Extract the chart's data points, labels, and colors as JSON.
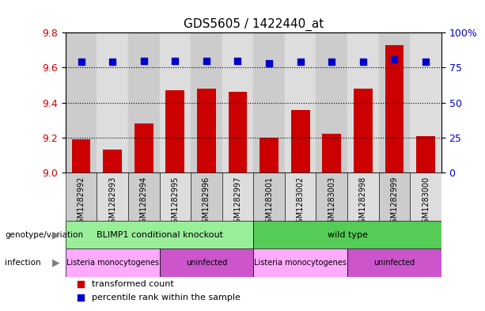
{
  "title": "GDS5605 / 1422440_at",
  "samples": [
    "GSM1282992",
    "GSM1282993",
    "GSM1282994",
    "GSM1282995",
    "GSM1282996",
    "GSM1282997",
    "GSM1283001",
    "GSM1283002",
    "GSM1283003",
    "GSM1282998",
    "GSM1282999",
    "GSM1283000"
  ],
  "transformed_count": [
    9.19,
    9.13,
    9.28,
    9.47,
    9.48,
    9.46,
    9.2,
    9.36,
    9.22,
    9.48,
    9.73,
    9.21
  ],
  "percentile_rank": [
    79,
    79,
    80,
    80,
    80,
    80,
    78,
    79,
    79,
    79,
    81,
    79
  ],
  "ylim_left": [
    9.0,
    9.8
  ],
  "ylim_right": [
    0,
    100
  ],
  "yticks_left": [
    9.0,
    9.2,
    9.4,
    9.6,
    9.8
  ],
  "yticks_right": [
    0,
    25,
    50,
    75,
    100
  ],
  "ytick_labels_right": [
    "0",
    "25",
    "50",
    "75",
    "100%"
  ],
  "bar_color": "#cc0000",
  "dot_color": "#0000cc",
  "genotype_groups": [
    {
      "label": "BLIMP1 conditional knockout",
      "start": 0,
      "end": 6,
      "color": "#99ee99"
    },
    {
      "label": "wild type",
      "start": 6,
      "end": 12,
      "color": "#55cc55"
    }
  ],
  "infection_groups": [
    {
      "label": "Listeria monocytogenes",
      "start": 0,
      "end": 3,
      "color": "#ffaaff"
    },
    {
      "label": "uninfected",
      "start": 3,
      "end": 6,
      "color": "#cc55cc"
    },
    {
      "label": "Listeria monocytogenes",
      "start": 6,
      "end": 9,
      "color": "#ffaaff"
    },
    {
      "label": "uninfected",
      "start": 9,
      "end": 12,
      "color": "#cc55cc"
    }
  ],
  "legend_items": [
    {
      "label": "transformed count",
      "color": "#cc0000"
    },
    {
      "label": "percentile rank within the sample",
      "color": "#0000cc"
    }
  ],
  "tick_fontsize": 9,
  "title_fontsize": 11,
  "bar_width": 0.6,
  "col_bg_even": "#cccccc",
  "col_bg_odd": "#dddddd",
  "label_row_bg": "#cccccc"
}
